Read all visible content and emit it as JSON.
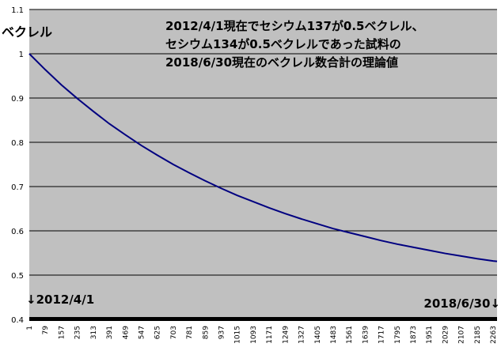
{
  "chart_data": {
    "type": "line",
    "title_lines": [
      "2012/4/1現在でセシウム137が0.5ベクレル、",
      "セシウム134が0.5ベクレルであった試料の",
      "2018/6/30現在のベクレル数合計の理論値"
    ],
    "ylabel": "ベクレル",
    "xlabel": "",
    "ylim": [
      0.4,
      1.1
    ],
    "yticks": [
      "0.4",
      "0.5",
      "0.6",
      "0.7",
      "0.8",
      "0.9",
      "1",
      "1.1"
    ],
    "xticks": [
      "1",
      "79",
      "157",
      "235",
      "313",
      "391",
      "469",
      "547",
      "625",
      "703",
      "781",
      "859",
      "937",
      "1015",
      "1093",
      "1171",
      "1249",
      "1327",
      "1405",
      "1483",
      "1561",
      "1639",
      "1717",
      "1795",
      "1873",
      "1951",
      "2029",
      "2107",
      "2185",
      "2263"
    ],
    "x_range": [
      1,
      2282
    ],
    "grid": true,
    "legend": "none",
    "annotations": {
      "start": "↓2012/4/1",
      "end": "2018/6/30↓"
    },
    "series": [
      {
        "color": "#000080",
        "x": [
          1,
          79,
          157,
          235,
          313,
          391,
          469,
          547,
          625,
          703,
          781,
          859,
          937,
          1015,
          1093,
          1171,
          1249,
          1327,
          1405,
          1483,
          1561,
          1639,
          1717,
          1795,
          1873,
          1951,
          2029,
          2107,
          2185,
          2263,
          2282
        ],
        "values": [
          1.0,
          0.964,
          0.93,
          0.899,
          0.87,
          0.842,
          0.817,
          0.793,
          0.771,
          0.75,
          0.731,
          0.713,
          0.696,
          0.68,
          0.666,
          0.652,
          0.639,
          0.627,
          0.616,
          0.605,
          0.596,
          0.587,
          0.578,
          0.57,
          0.563,
          0.556,
          0.549,
          0.543,
          0.537,
          0.532,
          0.531
        ]
      }
    ],
    "colors": {
      "plot_bg": "#c0c0c0",
      "grid": "#000000",
      "line": "#000080"
    }
  }
}
